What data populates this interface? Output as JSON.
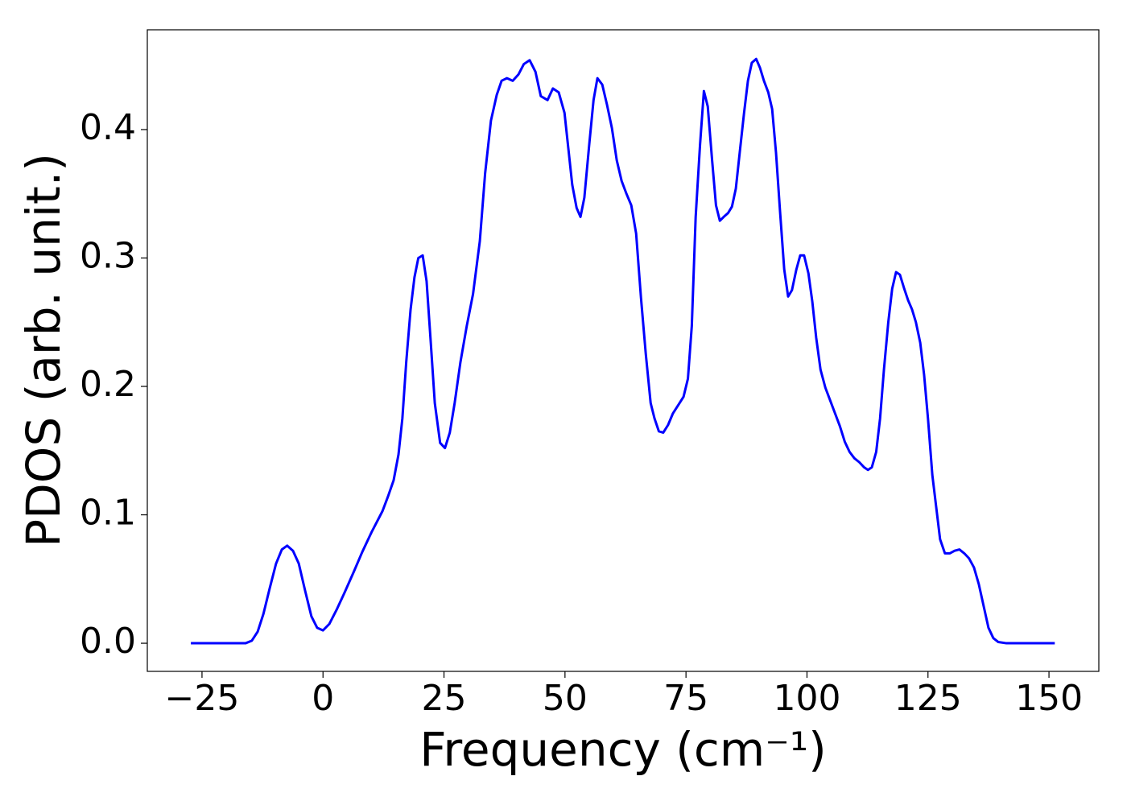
{
  "chart_data": {
    "type": "line",
    "xlabel": "Frequency (cm⁻¹)",
    "ylabel": "PDOS (arb. unit.)",
    "color": "#0000ff",
    "xlim": [
      -36.3,
      160.3
    ],
    "ylim": [
      -0.0219,
      0.4777
    ],
    "xticks": [
      -25,
      0,
      25,
      50,
      75,
      100,
      125,
      150
    ],
    "yticks": [
      {
        "value": 0,
        "label": "0.0"
      },
      0.1,
      0.2,
      0.3,
      0.4
    ],
    "x": [
      -27.3,
      -16,
      -14.7,
      -13.5,
      -12.3,
      -11,
      -9.7,
      -8.5,
      -7.4,
      -6.2,
      -5,
      -3.7,
      -2.4,
      -1.2,
      0,
      1.3,
      2.8,
      4.4,
      6.4,
      8.1,
      10.1,
      12.3,
      13.4,
      14.6,
      15.6,
      16.4,
      17.2,
      18.1,
      18.9,
      19.7,
      20.6,
      21.4,
      22.2,
      23.1,
      24.2,
      25.2,
      26.2,
      27.2,
      28.4,
      29.7,
      31,
      32.4,
      33.5,
      34.7,
      35.9,
      36.9,
      38,
      39.2,
      40.4,
      41.5,
      42.7,
      43.9,
      45,
      46.4,
      47.5,
      48.7,
      49.9,
      50.7,
      51.5,
      52.4,
      53.2,
      54,
      55,
      55.9,
      56.7,
      57.7,
      58.7,
      59.7,
      60.7,
      61.7,
      62.7,
      63.7,
      64.7,
      65.7,
      66.7,
      67.7,
      68.5,
      69.4,
      70.3,
      71.3,
      72.3,
      73.5,
      74.5,
      75.4,
      76.2,
      77,
      77.9,
      78.7,
      79.5,
      80.4,
      81.2,
      82,
      82.8,
      83.7,
      84.5,
      85.3,
      86.1,
      87,
      87.8,
      88.6,
      89.5,
      90.3,
      91.1,
      92,
      92.8,
      93.6,
      94.4,
      95.3,
      96.1,
      96.9,
      97.8,
      98.6,
      99.4,
      100.3,
      101.1,
      101.9,
      102.8,
      103.8,
      104.8,
      105.8,
      106.8,
      107.8,
      108.8,
      109.8,
      110.8,
      111.8,
      112.6,
      113.4,
      114.3,
      115.1,
      115.9,
      116.8,
      117.6,
      118.4,
      119.2,
      120.1,
      120.9,
      121.7,
      122.5,
      123.4,
      124.2,
      125,
      125.9,
      126.7,
      127.5,
      128.5,
      129.5,
      130.5,
      131.5,
      132.5,
      133.5,
      134.5,
      135.5,
      136.5,
      137.5,
      138.5,
      139.5,
      141.2,
      151.2
    ],
    "values": [
      0,
      0,
      0.002,
      0.009,
      0.023,
      0.043,
      0.062,
      0.073,
      0.076,
      0.072,
      0.062,
      0.041,
      0.021,
      0.012,
      0.01,
      0.015,
      0.026,
      0.039,
      0.056,
      0.071,
      0.087,
      0.103,
      0.114,
      0.127,
      0.147,
      0.175,
      0.219,
      0.26,
      0.285,
      0.3,
      0.302,
      0.282,
      0.238,
      0.187,
      0.156,
      0.152,
      0.164,
      0.187,
      0.219,
      0.247,
      0.272,
      0.313,
      0.366,
      0.407,
      0.427,
      0.438,
      0.44,
      0.438,
      0.443,
      0.451,
      0.454,
      0.445,
      0.426,
      0.423,
      0.432,
      0.429,
      0.413,
      0.385,
      0.357,
      0.339,
      0.332,
      0.347,
      0.388,
      0.423,
      0.44,
      0.435,
      0.419,
      0.401,
      0.376,
      0.36,
      0.35,
      0.341,
      0.319,
      0.269,
      0.225,
      0.187,
      0.175,
      0.165,
      0.164,
      0.17,
      0.179,
      0.186,
      0.192,
      0.206,
      0.247,
      0.332,
      0.388,
      0.43,
      0.418,
      0.376,
      0.341,
      0.329,
      0.332,
      0.335,
      0.34,
      0.354,
      0.382,
      0.413,
      0.438,
      0.452,
      0.455,
      0.448,
      0.438,
      0.429,
      0.416,
      0.382,
      0.338,
      0.291,
      0.27,
      0.275,
      0.291,
      0.302,
      0.302,
      0.288,
      0.266,
      0.238,
      0.213,
      0.199,
      0.189,
      0.179,
      0.169,
      0.157,
      0.149,
      0.144,
      0.141,
      0.137,
      0.135,
      0.137,
      0.149,
      0.175,
      0.213,
      0.25,
      0.276,
      0.289,
      0.287,
      0.276,
      0.267,
      0.26,
      0.25,
      0.234,
      0.209,
      0.175,
      0.131,
      0.106,
      0.081,
      0.07,
      0.07,
      0.072,
      0.073,
      0.07,
      0.066,
      0.059,
      0.046,
      0.029,
      0.012,
      0.004,
      0.001,
      0,
      0
    ]
  }
}
